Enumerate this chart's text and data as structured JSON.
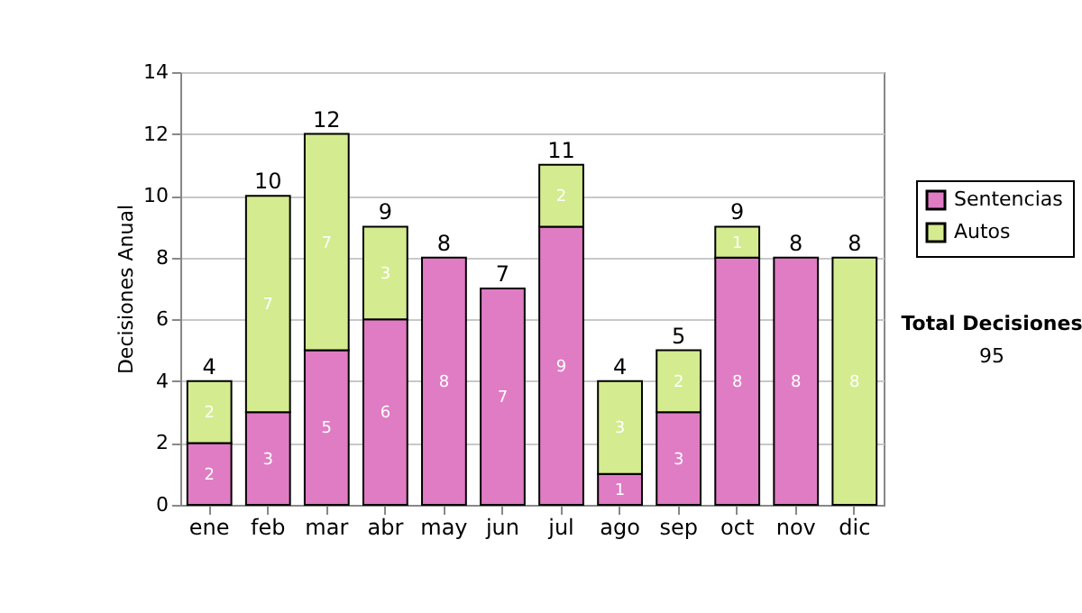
{
  "chart_data": {
    "type": "bar",
    "stacked": true,
    "ylabel": "Decisiones Anual",
    "categories": [
      "ene",
      "feb",
      "mar",
      "abr",
      "may",
      "jun",
      "jul",
      "ago",
      "sep",
      "oct",
      "nov",
      "dic"
    ],
    "series": [
      {
        "name": "Sentencias",
        "color": "#e07cc4",
        "values": [
          2,
          3,
          5,
          6,
          8,
          7,
          9,
          1,
          3,
          8,
          8,
          0
        ],
        "value_labels": [
          "2",
          "3",
          "5",
          "6",
          "8",
          "7",
          "9",
          "1",
          "3",
          "8",
          "8",
          null
        ]
      },
      {
        "name": "Autos",
        "color": "#d4eb8f",
        "values": [
          2,
          7,
          7,
          3,
          0,
          0,
          2,
          3,
          2,
          1,
          0,
          8
        ],
        "value_labels": [
          "2",
          "7",
          "7",
          "3",
          null,
          null,
          "2",
          "3",
          "2",
          "1",
          null,
          "8"
        ]
      }
    ],
    "totals": [
      "4",
      "10",
      "12",
      "9",
      "8",
      "7",
      "11",
      "4",
      "5",
      "9",
      "8",
      "8"
    ],
    "ylim": [
      0,
      14
    ],
    "yticks": [
      0,
      2,
      4,
      6,
      8,
      10,
      12,
      14
    ],
    "grid": "y",
    "legend": "right",
    "annotations": [
      "Total Decisiones",
      "95"
    ]
  }
}
